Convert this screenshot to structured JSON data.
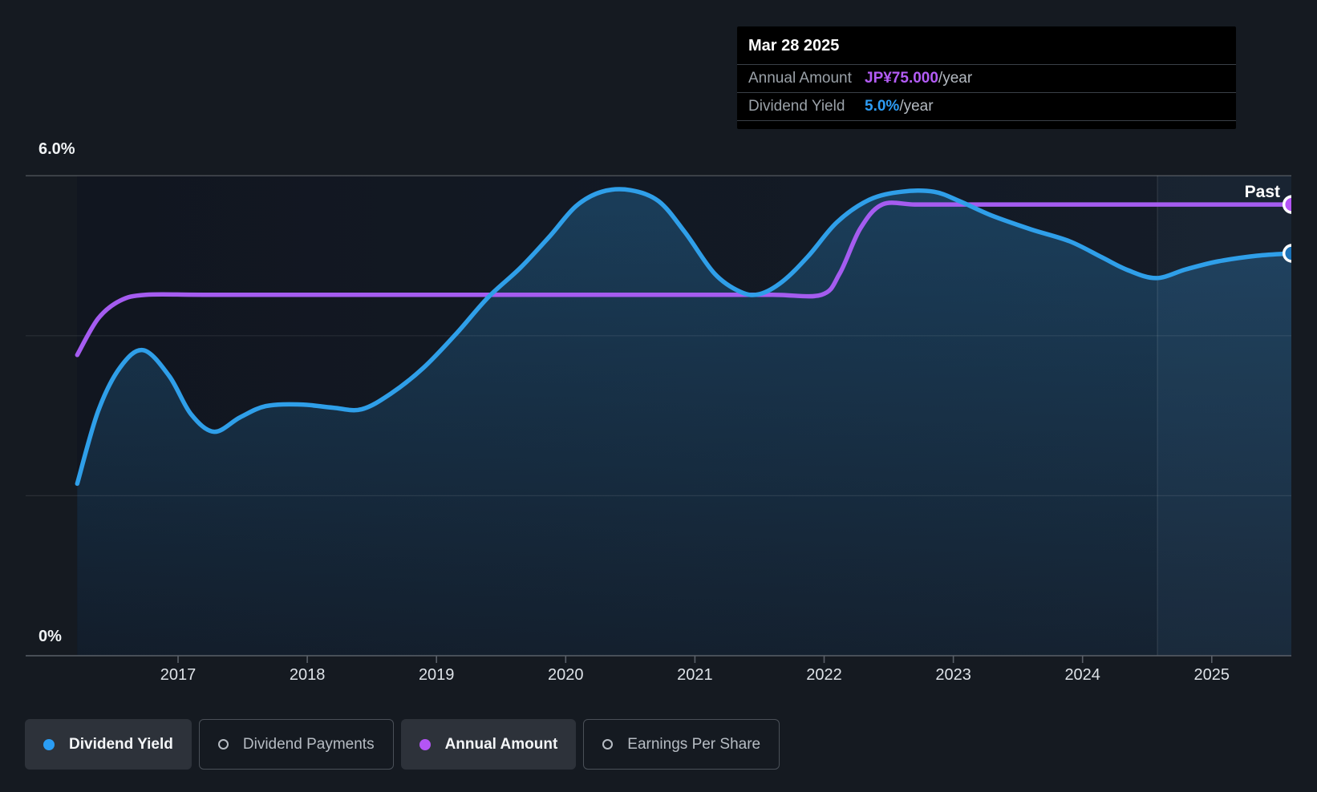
{
  "page": {
    "background": "#151a21",
    "plot_background": "#12161f"
  },
  "tooltip": {
    "date": "Mar 28 2025",
    "rows": [
      {
        "label": "Annual Amount",
        "value": "JP¥75.000",
        "suffix": "/year",
        "value_color": "#b35cf5"
      },
      {
        "label": "Dividend Yield",
        "value": "5.0%",
        "suffix": "/year",
        "value_color": "#2d9cf4"
      }
    ]
  },
  "y_axis": {
    "top_label": "6.0%",
    "bottom_label": "0%"
  },
  "x_axis": {
    "tick_labels": [
      "2017",
      "2018",
      "2019",
      "2020",
      "2021",
      "2022",
      "2023",
      "2024",
      "2025"
    ]
  },
  "past_label": "Past",
  "legend": {
    "items": [
      {
        "label": "Dividend Yield",
        "marker": "filled-dot",
        "color": "#2a9df4",
        "active": true
      },
      {
        "label": "Dividend Payments",
        "marker": "outline-dot",
        "color": "#3ec9b6",
        "active": false
      },
      {
        "label": "Annual Amount",
        "marker": "filled-dot",
        "color": "#b455f5",
        "active": true
      },
      {
        "label": "Earnings Per Share",
        "marker": "outline-dot",
        "color": "#d6498f",
        "active": false
      }
    ]
  },
  "chart_data": {
    "type": "line",
    "x_range": [
      2016.22,
      2025.62
    ],
    "x_tick_years": [
      2017,
      2018,
      2019,
      2020,
      2021,
      2022,
      2023,
      2024,
      2025
    ],
    "y_axis": {
      "min": 0,
      "max": 6,
      "unit": "%",
      "gridlines_pct": [
        0,
        2,
        4,
        6
      ],
      "labeled": {
        "6": "6.0%",
        "0": "0%"
      }
    },
    "past_region_start_year": 2024.58,
    "grid_on": true,
    "legend_position": "bottom",
    "series": [
      {
        "name": "Dividend Yield",
        "unit": "%",
        "color": "#2f9fe9",
        "style": "smooth-line-with-area",
        "points": [
          [
            2016.22,
            2.15
          ],
          [
            2016.38,
            3.05
          ],
          [
            2016.55,
            3.6
          ],
          [
            2016.73,
            3.82
          ],
          [
            2016.93,
            3.5
          ],
          [
            2017.1,
            3.02
          ],
          [
            2017.28,
            2.8
          ],
          [
            2017.48,
            2.98
          ],
          [
            2017.68,
            3.12
          ],
          [
            2017.95,
            3.14
          ],
          [
            2018.2,
            3.1
          ],
          [
            2018.42,
            3.08
          ],
          [
            2018.65,
            3.28
          ],
          [
            2018.9,
            3.6
          ],
          [
            2019.15,
            4.02
          ],
          [
            2019.4,
            4.48
          ],
          [
            2019.65,
            4.85
          ],
          [
            2019.88,
            5.25
          ],
          [
            2020.08,
            5.62
          ],
          [
            2020.28,
            5.8
          ],
          [
            2020.5,
            5.82
          ],
          [
            2020.72,
            5.68
          ],
          [
            2020.92,
            5.3
          ],
          [
            2021.15,
            4.78
          ],
          [
            2021.35,
            4.55
          ],
          [
            2021.5,
            4.52
          ],
          [
            2021.68,
            4.68
          ],
          [
            2021.88,
            5.0
          ],
          [
            2022.1,
            5.42
          ],
          [
            2022.35,
            5.7
          ],
          [
            2022.6,
            5.8
          ],
          [
            2022.85,
            5.8
          ],
          [
            2023.05,
            5.68
          ],
          [
            2023.3,
            5.5
          ],
          [
            2023.6,
            5.33
          ],
          [
            2023.9,
            5.18
          ],
          [
            2024.15,
            4.98
          ],
          [
            2024.35,
            4.82
          ],
          [
            2024.57,
            4.72
          ],
          [
            2024.8,
            4.83
          ],
          [
            2025.05,
            4.93
          ],
          [
            2025.35,
            5.0
          ],
          [
            2025.62,
            5.03
          ]
        ]
      },
      {
        "name": "Annual Amount",
        "unit": "JP¥/year",
        "color": "#a55cf0",
        "style": "smooth-line",
        "note": "plotted on secondary scale: JP¥75/year aligns with 5.64% on the yield axis",
        "points": [
          [
            2016.22,
            50
          ],
          [
            2016.38,
            56
          ],
          [
            2016.55,
            59
          ],
          [
            2016.75,
            60
          ],
          [
            2017.2,
            60
          ],
          [
            2018.0,
            60
          ],
          [
            2019.0,
            60
          ],
          [
            2020.0,
            60
          ],
          [
            2021.0,
            60
          ],
          [
            2021.6,
            60
          ],
          [
            2021.98,
            60
          ],
          [
            2022.12,
            63.5
          ],
          [
            2022.28,
            71
          ],
          [
            2022.45,
            75
          ],
          [
            2022.7,
            75
          ],
          [
            2023.0,
            75
          ],
          [
            2023.5,
            75
          ],
          [
            2024.0,
            75
          ],
          [
            2024.5,
            75
          ],
          [
            2025.0,
            75
          ],
          [
            2025.62,
            75
          ]
        ]
      }
    ],
    "end_markers": [
      {
        "series": "Annual Amount",
        "fill": "#b455f5",
        "stroke": "#ffffff"
      },
      {
        "series": "Dividend Yield",
        "fill": "#1b72b8",
        "stroke": "#ffffff"
      }
    ]
  }
}
